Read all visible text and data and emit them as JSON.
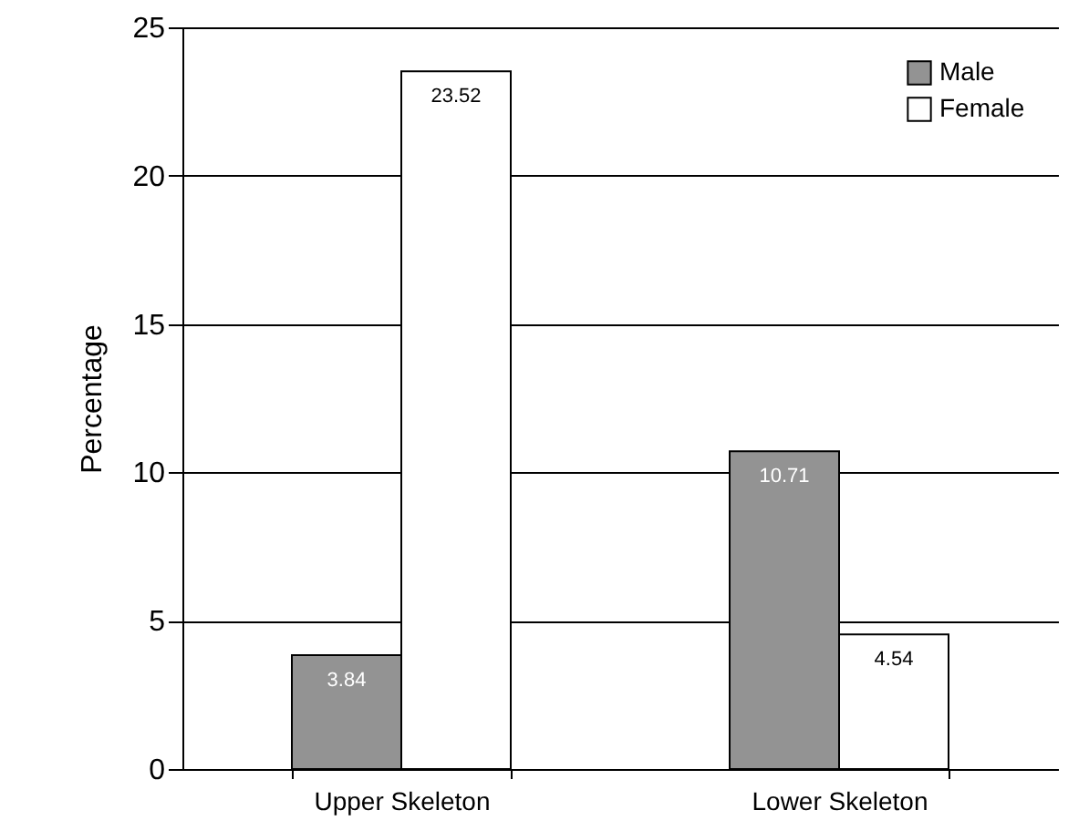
{
  "chart_data": {
    "type": "bar",
    "ylabel": "Percentage",
    "categories": [
      "Upper Skeleton",
      "Lower Skeleton"
    ],
    "series": [
      {
        "name": "Male",
        "color": "#939393",
        "values": [
          3.84,
          10.71
        ]
      },
      {
        "name": "Female",
        "color": "#ffffff",
        "values": [
          23.52,
          4.54
        ]
      }
    ],
    "ylim": [
      0,
      25
    ],
    "yticks": [
      0,
      5,
      10,
      15,
      20,
      25
    ],
    "grid": "y",
    "legend": "top right",
    "data_labels": true
  }
}
